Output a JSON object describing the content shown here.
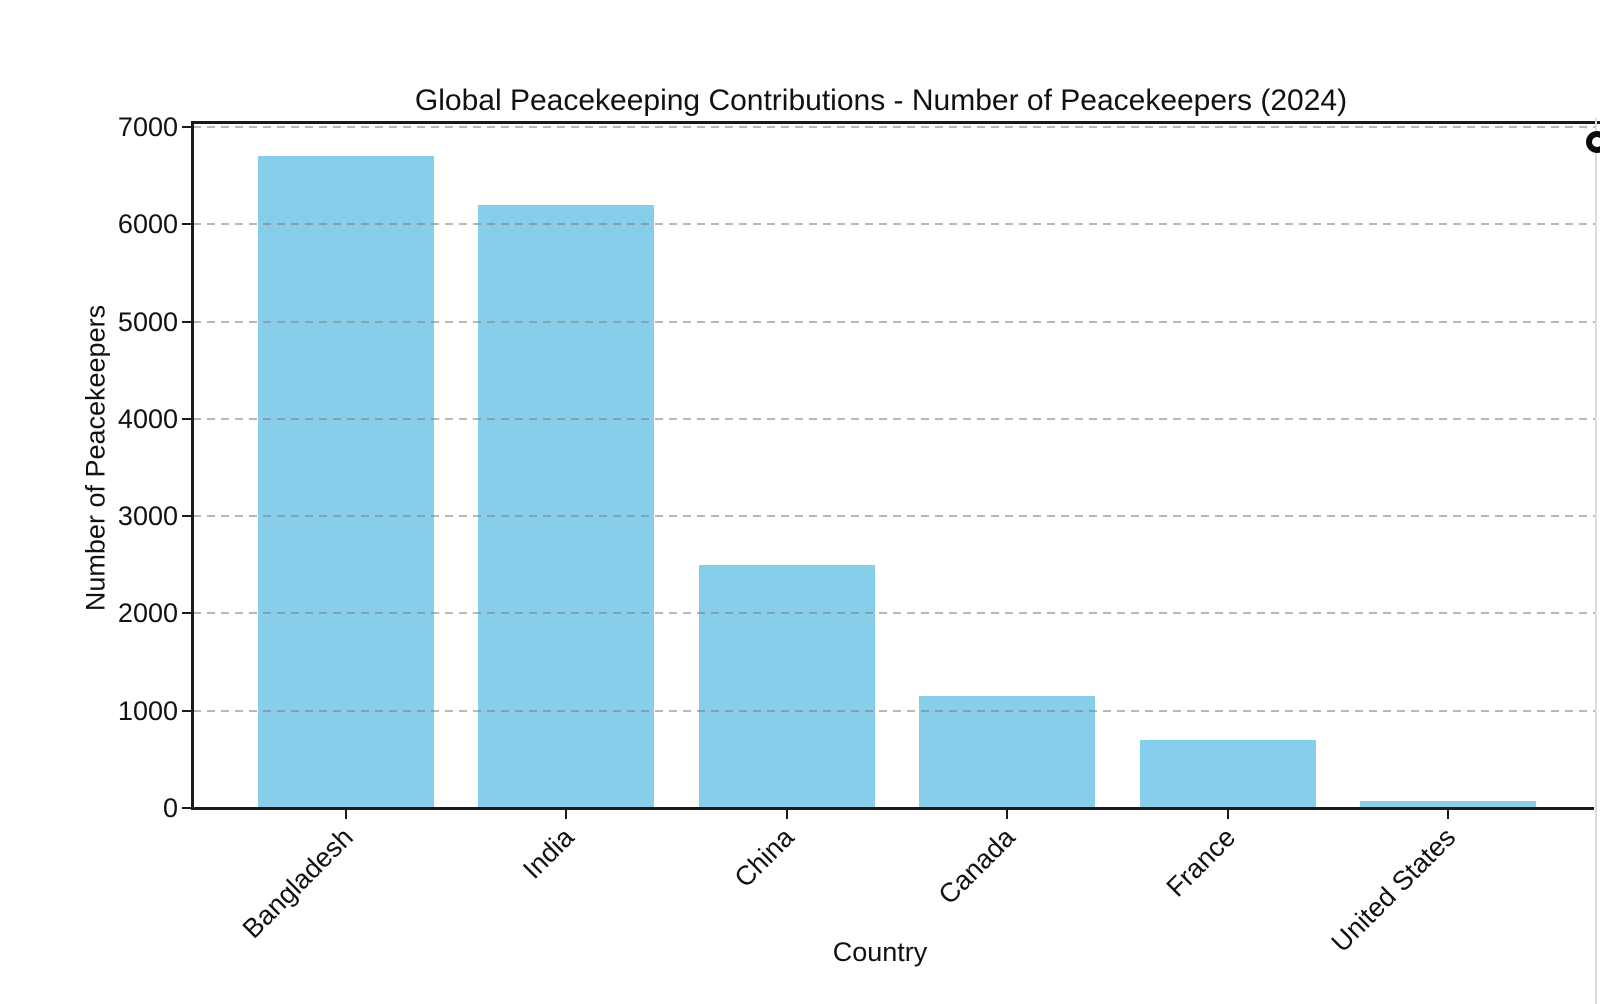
{
  "chart_data": {
    "type": "bar",
    "title": "Global Peacekeeping Contributions - Number of Peacekeepers (2024)",
    "xlabel": "Country",
    "ylabel": "Number of Peacekeepers",
    "categories": [
      "Bangladesh",
      "India",
      "China",
      "Canada",
      "France",
      "United States"
    ],
    "values": [
      6700,
      6200,
      2500,
      1150,
      700,
      70
    ],
    "ylim": [
      0,
      7000
    ],
    "yticks": [
      0,
      1000,
      2000,
      3000,
      4000,
      5000,
      6000,
      7000
    ],
    "grid": "horizontal-dashed",
    "legend": "none",
    "bar_color": "#87CEEB",
    "axis_color": "#1a1a1a",
    "gridline_color": "#b3b3b3",
    "background": "#ffffff"
  },
  "decorations": {
    "partial_ring_icon": "black ring cut off at right screen edge"
  }
}
